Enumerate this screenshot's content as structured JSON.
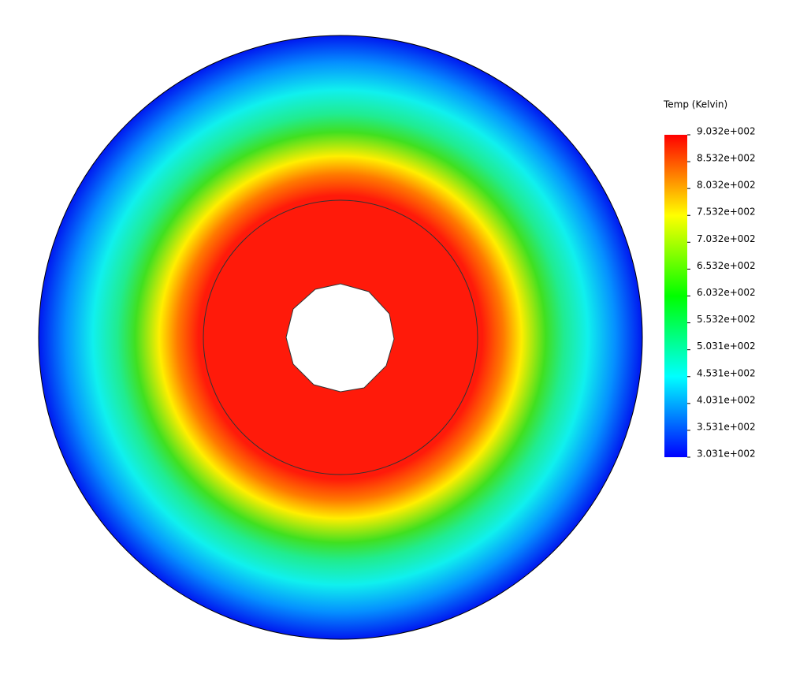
{
  "chart_data": {
    "type": "contour",
    "title": "Temp (Kelvin)",
    "clim": [
      303.1,
      903.2
    ],
    "colormap": [
      "#0000ff",
      "#0080ff",
      "#00ffff",
      "#00ff80",
      "#00ff00",
      "#80ff00",
      "#ffff00",
      "#ff8000",
      "#ff0000"
    ],
    "cticks": [
      {
        "value": 903.2,
        "label": "9.032e+002"
      },
      {
        "value": 853.2,
        "label": "8.532e+002"
      },
      {
        "value": 803.2,
        "label": "8.032e+002"
      },
      {
        "value": 753.2,
        "label": "7.532e+002"
      },
      {
        "value": 703.2,
        "label": "7.032e+002"
      },
      {
        "value": 653.2,
        "label": "6.532e+002"
      },
      {
        "value": 603.2,
        "label": "6.032e+002"
      },
      {
        "value": 553.2,
        "label": "5.532e+002"
      },
      {
        "value": 503.1,
        "label": "5.031e+002"
      },
      {
        "value": 453.1,
        "label": "4.531e+002"
      },
      {
        "value": 403.1,
        "label": "4.031e+002"
      },
      {
        "value": 353.1,
        "label": "3.531e+002"
      },
      {
        "value": 303.1,
        "label": "3.031e+002"
      }
    ]
  }
}
